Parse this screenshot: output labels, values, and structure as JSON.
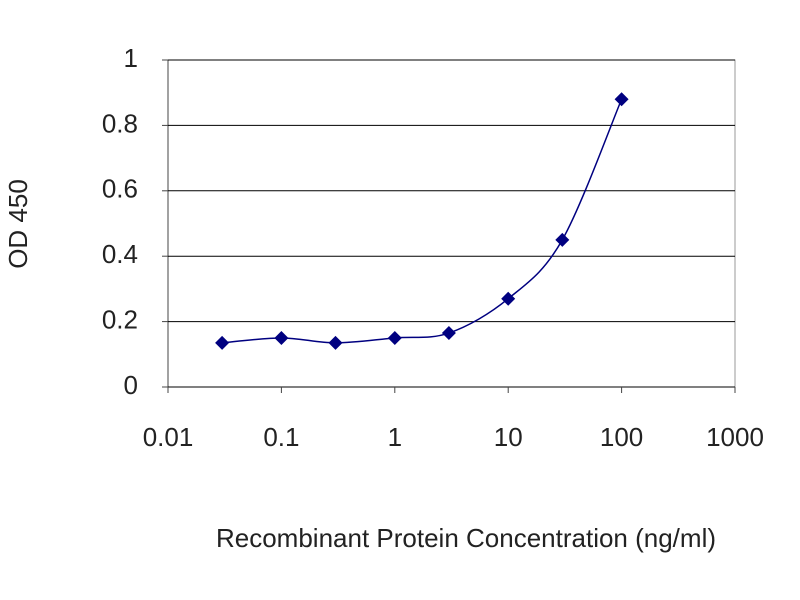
{
  "chart_data": {
    "type": "line",
    "x_label": "Recombinant Protein Concentration (ng/ml)",
    "y_label": "OD 450",
    "x": [
      0.03,
      0.1,
      0.3,
      1,
      3,
      10,
      30,
      100
    ],
    "series": [
      {
        "name": null,
        "color": "#000080",
        "values": [
          0.135,
          0.15,
          0.135,
          0.15,
          0.165,
          0.27,
          0.45,
          0.88
        ]
      }
    ],
    "xlim": [
      0.01,
      1000
    ],
    "xticks": [
      0.01,
      0.1,
      1,
      10,
      100,
      1000
    ],
    "x_log": true,
    "ylim": [
      0,
      1
    ],
    "yticks": [
      0,
      0.2,
      0.4,
      0.6,
      0.8,
      1
    ],
    "grid": true,
    "marker": "diamond"
  }
}
